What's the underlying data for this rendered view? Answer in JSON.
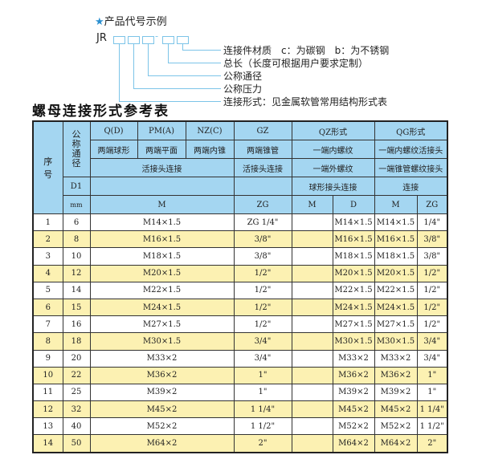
{
  "legend": {
    "title": "产品代号示例",
    "code_prefix": "JR",
    "dash": "-",
    "labels": [
      "连接件材质　c：为碳钢　b：为不锈钢",
      "总长（长度可根据用户要求定制）",
      "公称通径",
      "公称压力",
      "连接形式：见金属软管常用结构形式表"
    ]
  },
  "table_title": "螺母连接形式参考表",
  "header": {
    "seq": "序号",
    "dn": "公称通径",
    "d1": "D1",
    "mm": "mm",
    "types": [
      "Q(D)",
      "PM(A)",
      "NZ(C)",
      "GZ",
      "QZ形式",
      "QG形式"
    ],
    "desc": [
      "两端球形",
      "两端平面",
      "两端内锥",
      "两端锥管",
      "一端内螺纹",
      "一端内螺纹活接头"
    ],
    "conn1": "活接头连接",
    "conn2": "活接头连接",
    "qz2": "一端外螺纹",
    "qg2": "一端锥管螺纹接头",
    "qz3": "球形接头连接",
    "qg3": "连接",
    "units": [
      "M",
      "ZG",
      "M",
      "D",
      "M",
      "ZG"
    ]
  },
  "rows": [
    {
      "n": "1",
      "dn": "6",
      "m": "M14×1.5",
      "zg": "ZG 1/4\"",
      "qzd": "M14×1.5",
      "qgm": "M14×1.5",
      "qgzg": "1/4\""
    },
    {
      "n": "2",
      "dn": "8",
      "m": "M16×1.5",
      "zg": "3/8\"",
      "qzd": "M16×1.5",
      "qgm": "M16×1.5",
      "qgzg": "3/8\""
    },
    {
      "n": "3",
      "dn": "10",
      "m": "M18×1.5",
      "zg": "3/8\"",
      "qzd": "M18×1.5",
      "qgm": "M18×1.5",
      "qgzg": "3/8\""
    },
    {
      "n": "4",
      "dn": "12",
      "m": "M20×1.5",
      "zg": "1/2\"",
      "qzd": "M20×1.5",
      "qgm": "M20×1.5",
      "qgzg": "1/2\""
    },
    {
      "n": "5",
      "dn": "14",
      "m": "M22×1.5",
      "zg": "1/2\"",
      "qzd": "M22×1.5",
      "qgm": "M22×1.5",
      "qgzg": "1/2\""
    },
    {
      "n": "6",
      "dn": "15",
      "m": "M24×1.5",
      "zg": "1/2\"",
      "qzd": "M24×1.5",
      "qgm": "M24×1.5",
      "qgzg": "1/2\""
    },
    {
      "n": "7",
      "dn": "16",
      "m": "M27×1.5",
      "zg": "1/2\"",
      "qzd": "M27×1.5",
      "qgm": "M27×1.5",
      "qgzg": "1/2\""
    },
    {
      "n": "8",
      "dn": "18",
      "m": "M30×1.5",
      "zg": "3/4\"",
      "qzd": "M30×1.5",
      "qgm": "M30×1.5",
      "qgzg": "3/4\""
    },
    {
      "n": "9",
      "dn": "20",
      "m": "M33×2",
      "zg": "3/4\"",
      "qzd": "M33×2",
      "qgm": "M33×2",
      "qgzg": "3/4\""
    },
    {
      "n": "10",
      "dn": "22",
      "m": "M36×2",
      "zg": "1\"",
      "qzd": "M36×2",
      "qgm": "M36×2",
      "qgzg": "1\""
    },
    {
      "n": "11",
      "dn": "25",
      "m": "M39×2",
      "zg": "1\"",
      "qzd": "M39×2",
      "qgm": "M39×2",
      "qgzg": "1\""
    },
    {
      "n": "12",
      "dn": "32",
      "m": "M45×2",
      "zg": "1 1/4\"",
      "qzd": "M45×2",
      "qgm": "M45×2",
      "qgzg": "1 1/4\""
    },
    {
      "n": "13",
      "dn": "40",
      "m": "M52×2",
      "zg": "1 1/2\"",
      "qzd": "M52×2",
      "qgm": "M52×2",
      "qgzg": "1 1/2\""
    },
    {
      "n": "14",
      "dn": "50",
      "m": "M64×2",
      "zg": "2\"",
      "qzd": "M64×2",
      "qgm": "M64×2",
      "qgzg": "2\""
    }
  ],
  "colors": {
    "header": "#a4d6f1",
    "stripe": "#fcf1b2",
    "line": "#7cc4e8"
  }
}
